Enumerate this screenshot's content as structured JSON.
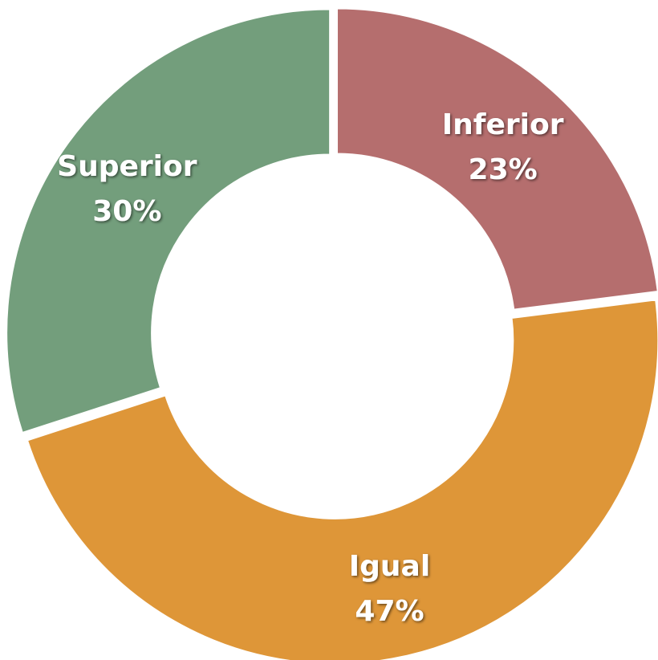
{
  "chart_data": {
    "type": "donut",
    "categories": [
      "Inferior",
      "Igual",
      "Superior"
    ],
    "values": [
      23,
      47,
      30
    ],
    "value_labels": [
      "23%",
      "47%",
      "30%"
    ],
    "colors": [
      "#b56e6e",
      "#de9638",
      "#739e7c"
    ]
  }
}
